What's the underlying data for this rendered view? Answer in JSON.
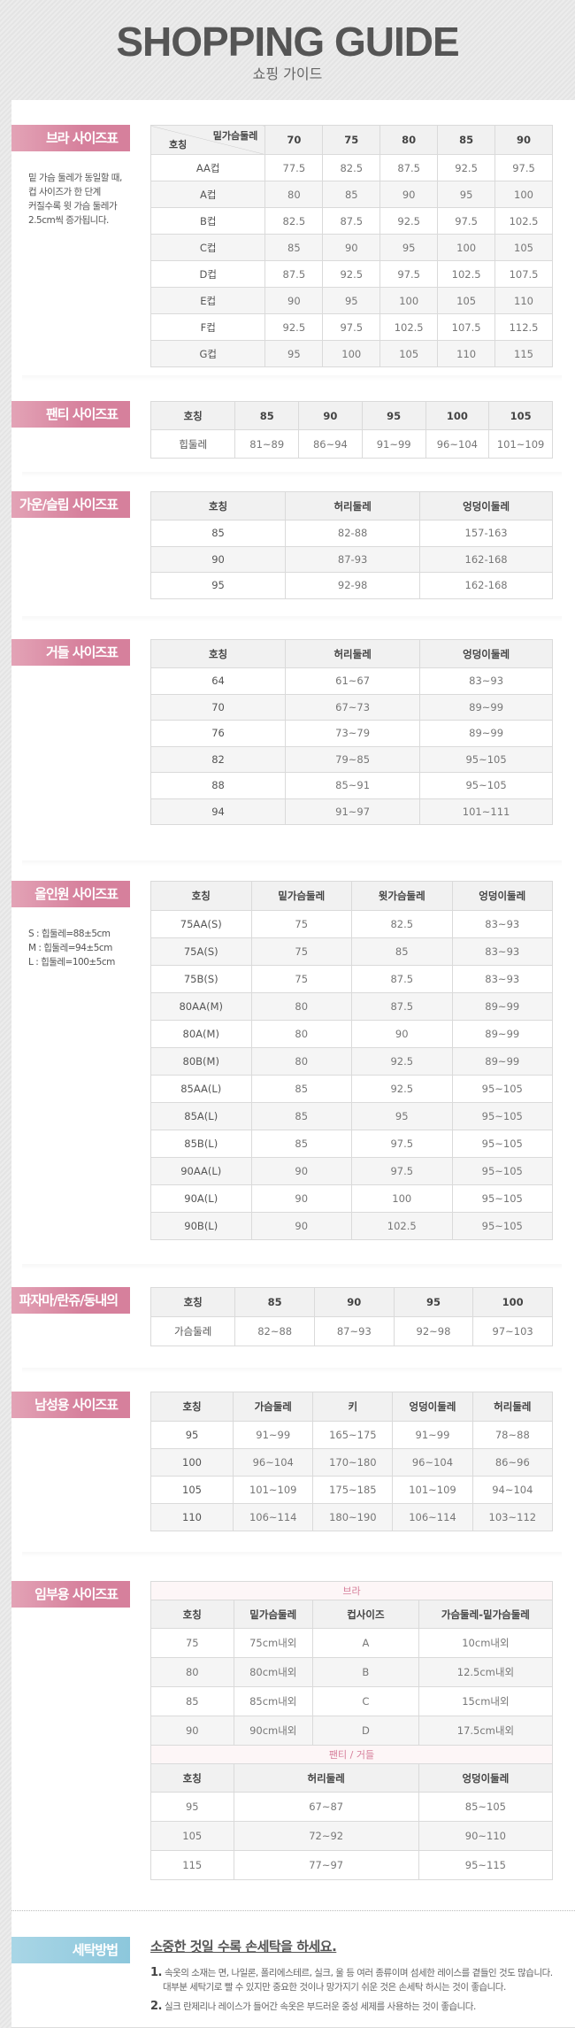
{
  "header": {
    "title": "SHOPPING GUIDE",
    "subtitle": "쇼핑 가이드"
  },
  "bra": {
    "label": "브라 사이즈표",
    "note": [
      "밑 가슴 둘레가 동일할 때,",
      "컵 사이즈가 한 단계",
      "커질수록 윗 가슴 둘레가",
      "2.5cm씩 증가됩니다."
    ],
    "corner_top": "밑가슴둘레",
    "corner_bottom": "호칭",
    "columns": [
      "70",
      "75",
      "80",
      "85",
      "90"
    ],
    "rows": [
      [
        "AA컵",
        "77.5",
        "82.5",
        "87.5",
        "92.5",
        "97.5"
      ],
      [
        "A컵",
        "80",
        "85",
        "90",
        "95",
        "100"
      ],
      [
        "B컵",
        "82.5",
        "87.5",
        "92.5",
        "97.5",
        "102.5"
      ],
      [
        "C컵",
        "85",
        "90",
        "95",
        "100",
        "105"
      ],
      [
        "D컵",
        "87.5",
        "92.5",
        "97.5",
        "102.5",
        "107.5"
      ],
      [
        "E컵",
        "90",
        "95",
        "100",
        "105",
        "110"
      ],
      [
        "F컵",
        "92.5",
        "97.5",
        "102.5",
        "107.5",
        "112.5"
      ],
      [
        "G컵",
        "95",
        "100",
        "105",
        "110",
        "115"
      ]
    ]
  },
  "panty": {
    "label": "팬티 사이즈표",
    "columns": [
      "호칭",
      "85",
      "90",
      "95",
      "100",
      "105"
    ],
    "rows": [
      [
        "힙둘레",
        "81~89",
        "86~94",
        "91~99",
        "96~104",
        "101~109"
      ]
    ]
  },
  "gown": {
    "label": "가운/슬립 사이즈표",
    "columns": [
      "호칭",
      "허리둘레",
      "엉덩이둘레"
    ],
    "rows": [
      [
        "85",
        "82-88",
        "157-163"
      ],
      [
        "90",
        "87-93",
        "162-168"
      ],
      [
        "95",
        "92-98",
        "162-168"
      ]
    ]
  },
  "girdle": {
    "label": "거들 사이즈표",
    "columns": [
      "호칭",
      "허리둘레",
      "엉덩이둘레"
    ],
    "rows": [
      [
        "64",
        "61~67",
        "83~93"
      ],
      [
        "70",
        "67~73",
        "89~99"
      ],
      [
        "76",
        "73~79",
        "89~99"
      ],
      [
        "82",
        "79~85",
        "95~105"
      ],
      [
        "88",
        "85~91",
        "95~105"
      ],
      [
        "94",
        "91~97",
        "101~111"
      ]
    ]
  },
  "allinone": {
    "label": "올인원 사이즈표",
    "note": [
      "S : 힙둘레=88±5cm",
      "M : 힙둘레=94±5cm",
      "L : 힙둘레=100±5cm"
    ],
    "columns": [
      "호칭",
      "밑가슴둘레",
      "윗가슴둘레",
      "엉덩이둘레"
    ],
    "rows": [
      [
        "75AA(S)",
        "75",
        "82.5",
        "83~93"
      ],
      [
        "75A(S)",
        "75",
        "85",
        "83~93"
      ],
      [
        "75B(S)",
        "75",
        "87.5",
        "83~93"
      ],
      [
        "80AA(M)",
        "80",
        "87.5",
        "89~99"
      ],
      [
        "80A(M)",
        "80",
        "90",
        "89~99"
      ],
      [
        "80B(M)",
        "80",
        "92.5",
        "89~99"
      ],
      [
        "85AA(L)",
        "85",
        "92.5",
        "95~105"
      ],
      [
        "85A(L)",
        "85",
        "95",
        "95~105"
      ],
      [
        "85B(L)",
        "85",
        "97.5",
        "95~105"
      ],
      [
        "90AA(L)",
        "90",
        "97.5",
        "95~105"
      ],
      [
        "90A(L)",
        "90",
        "100",
        "95~105"
      ],
      [
        "90B(L)",
        "90",
        "102.5",
        "95~105"
      ]
    ]
  },
  "pajama": {
    "label": "파자마/란쥬/동내의",
    "columns": [
      "호칭",
      "85",
      "90",
      "95",
      "100"
    ],
    "rows": [
      [
        "가슴둘레",
        "82~88",
        "87~93",
        "92~98",
        "97~103"
      ]
    ]
  },
  "men": {
    "label": "남성용 사이즈표",
    "columns": [
      "호칭",
      "가슴둘레",
      "키",
      "엉덩이둘레",
      "허리둘레"
    ],
    "rows": [
      [
        "95",
        "91~99",
        "165~175",
        "91~99",
        "78~88"
      ],
      [
        "100",
        "96~104",
        "170~180",
        "96~104",
        "86~96"
      ],
      [
        "105",
        "101~109",
        "175~185",
        "101~109",
        "94~104"
      ],
      [
        "110",
        "106~114",
        "180~190",
        "106~114",
        "103~112"
      ]
    ]
  },
  "maternity": {
    "label": "임부용 사이즈표",
    "bra": {
      "title": "브라",
      "columns": [
        "호칭",
        "밑가슴둘레",
        "컵사이즈",
        "가슴둘레-밑가슴둘레"
      ],
      "rows": [
        [
          "75",
          "75cm내외",
          "A",
          "10cm내외"
        ],
        [
          "80",
          "80cm내외",
          "B",
          "12.5cm내외"
        ],
        [
          "85",
          "85cm내외",
          "C",
          "15cm내외"
        ],
        [
          "90",
          "90cm내외",
          "D",
          "17.5cm내외"
        ]
      ]
    },
    "panty": {
      "title": "팬티 / 거들",
      "columns": [
        "호칭",
        "허리둘레",
        "엉덩이둘레"
      ],
      "rows": [
        [
          "95",
          "67~87",
          "85~105"
        ],
        [
          "105",
          "72~92",
          "90~110"
        ],
        [
          "115",
          "77~97",
          "95~115"
        ]
      ]
    }
  },
  "wash": {
    "label": "세탁방법",
    "heading": "소중한 것일 수록 손세탁을 하세요.",
    "items": [
      {
        "num": "1.",
        "lines": [
          "속옷의 소재는 면, 나일론, 폴리에스테르, 실크, 울 등 여러 종류이며 섬세한 레이스를 곁들인 것도 많습니다.",
          "대부분 세탁기로 빨 수 있지만 중요한 것이나 망가지기 쉬운 것은 손세탁 하시는 것이 좋습니다."
        ]
      },
      {
        "num": "2.",
        "lines": [
          "실크 란제리나 레이스가 들어간 속옷은 부드러운 중성 세제를 사용하는 것이 좋습니다."
        ]
      }
    ]
  },
  "colors": {
    "label_pink": "#d6809c",
    "label_blue": "#8cc7dc",
    "subheader_pink": "#d67e9a"
  }
}
